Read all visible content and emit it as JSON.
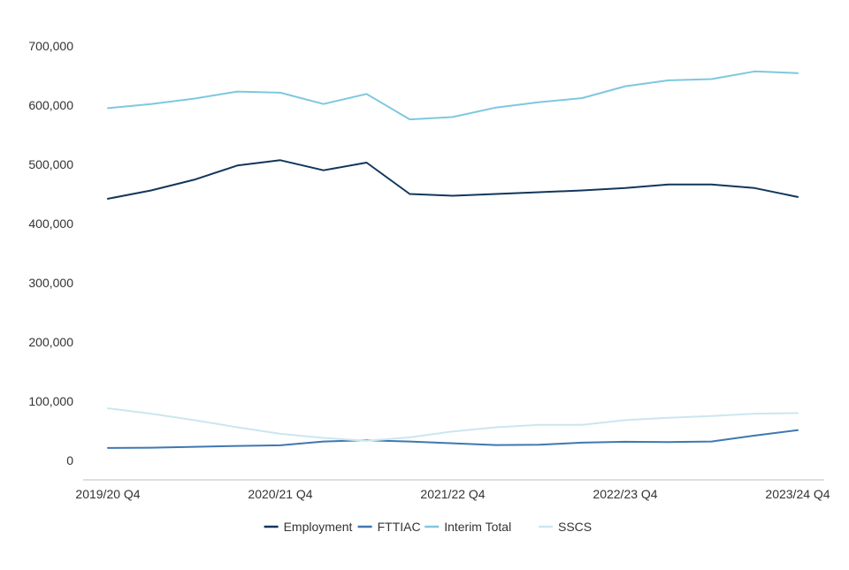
{
  "chart_data": {
    "type": "line",
    "title": "",
    "xlabel": "",
    "ylabel": "",
    "ylim": [
      0,
      700000
    ],
    "yticks": [
      0,
      100000,
      200000,
      300000,
      400000,
      500000,
      600000,
      700000
    ],
    "ytick_labels": [
      "0",
      "100,000",
      "200,000",
      "300,000",
      "400,000",
      "500,000",
      "600,000",
      "700,000"
    ],
    "x": [
      "2019/20 Q4",
      "2020/21 Q1",
      "2020/21 Q2",
      "2020/21 Q3",
      "2020/21 Q4",
      "2021/22 Q1",
      "2021/22 Q2",
      "2021/22 Q3",
      "2021/22 Q4",
      "2022/23 Q1",
      "2022/23 Q2",
      "2022/23 Q3",
      "2022/23 Q4",
      "2023/24 Q1",
      "2023/24 Q2",
      "2023/24 Q3",
      "2023/24 Q4"
    ],
    "xtick_labels": [
      "2019/20 Q4",
      "2020/21 Q4",
      "2021/22 Q4",
      "2022/23 Q4",
      "2023/24 Q4"
    ],
    "grid": false,
    "legend_position": "bottom",
    "series": [
      {
        "name": "Employment",
        "color": "#12375b",
        "values": [
          442000,
          456000,
          474000,
          498000,
          507000,
          490000,
          503000,
          450000,
          447000,
          450000,
          453000,
          456000,
          460000,
          466000,
          466000,
          460000,
          445000
        ]
      },
      {
        "name": "FTTIAC",
        "color": "#3f78b2",
        "values": [
          21000,
          21500,
          23000,
          24500,
          25500,
          32000,
          34000,
          32000,
          29000,
          26000,
          26500,
          30000,
          31500,
          31000,
          32000,
          42000,
          51000
        ]
      },
      {
        "name": "Interim Total",
        "color": "#7ec8de",
        "values": [
          595000,
          602000,
          611000,
          623000,
          621000,
          602000,
          619000,
          576000,
          580000,
          596000,
          605000,
          612000,
          632000,
          642000,
          644000,
          657000,
          654000
        ]
      },
      {
        "name": "SSCS",
        "color": "#cbe6f0",
        "values": [
          88000,
          79000,
          68000,
          56000,
          45000,
          38000,
          33000,
          39000,
          49000,
          56000,
          60000,
          60000,
          68000,
          72000,
          75000,
          79000,
          80000
        ]
      }
    ]
  }
}
